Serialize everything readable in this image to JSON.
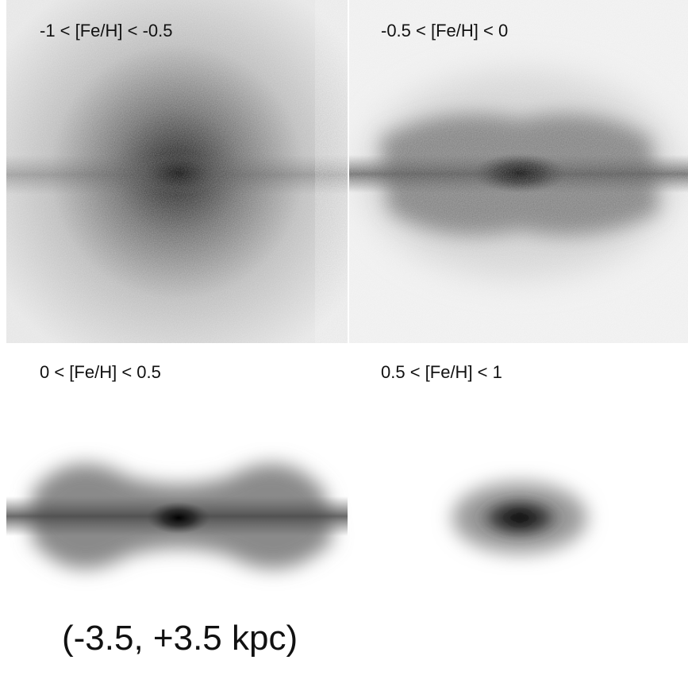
{
  "panels": [
    {
      "label": "-1 < [Fe/H] < -0.5"
    },
    {
      "label": "-0.5 < [Fe/H] < 0"
    },
    {
      "label": "0 < [Fe/H] < 0.5"
    },
    {
      "label": "0.5 < [Fe/H] < 1"
    }
  ],
  "caption": "(-3.5, +3.5 kpc)"
}
